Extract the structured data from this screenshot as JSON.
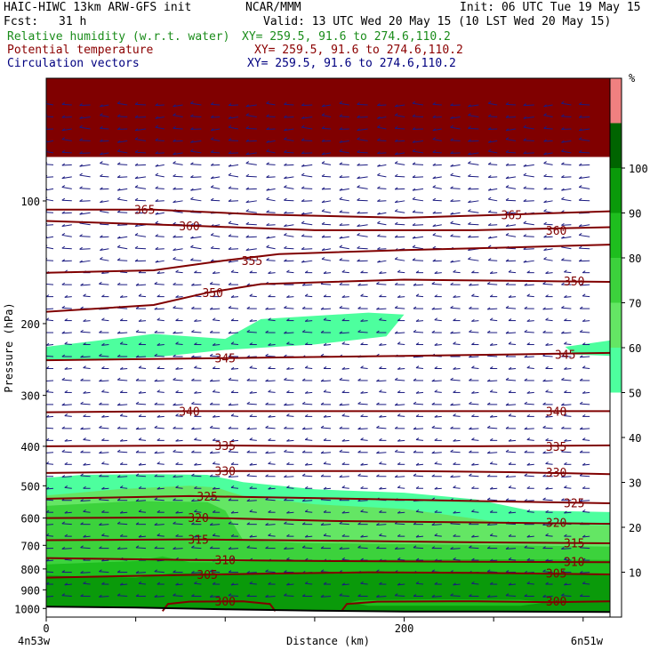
{
  "header": {
    "title_left": "HAIC-HIWC 13km ARW-GFS init",
    "title_center": "NCAR/MMM",
    "init": "Init: 06 UTC Tue 19 May 15",
    "fcst_label": "Fcst:",
    "fcst_value": "31 h",
    "valid": "Valid: 13 UTC Wed 20 May 15 (10 LST Wed 20 May 15)"
  },
  "fields": [
    {
      "name": "Relative humidity (w.r.t. water)",
      "xy": "XY= 259.5, 91.6 to 274.6,110.2",
      "color": "#1a8c1a"
    },
    {
      "name": "Potential temperature",
      "xy": "XY= 259.5, 91.6 to 274.6,110.2",
      "color": "#8b0000"
    },
    {
      "name": "Circulation vectors",
      "xy": "XY= 259.5, 91.6 to 274.6,110.2",
      "color": "#000080"
    }
  ],
  "chart_data": {
    "type": "cross-section",
    "ylabel": "Pressure (hPa)",
    "xlabel": "Distance (km)",
    "y_scale": "log",
    "ylim": [
      1050,
      50
    ],
    "xlim": [
      0,
      315
    ],
    "y_ticks": [
      100,
      200,
      300,
      400,
      500,
      600,
      700,
      800,
      900,
      1000
    ],
    "x_ticks": [
      0,
      200
    ],
    "x_endpoints": [
      "4n53w",
      "6n51w"
    ],
    "colorbar": {
      "unit": "%",
      "levels": [
        10,
        20,
        30,
        40,
        50,
        60,
        70,
        80,
        90,
        100
      ],
      "colors": [
        "#ffffff",
        "#ffffff",
        "#ffffff",
        "#ffffff",
        "#ffffff",
        "#4dff9e",
        "#64e664",
        "#3cd23c",
        "#1ebe1e",
        "#0a9a0a",
        "#006400",
        "#f08080"
      ]
    },
    "rh_regions": [
      {
        "level": 50,
        "color": "#4dff9e",
        "boundary": [
          [
            0,
            590
          ],
          [
            0,
            478
          ],
          [
            20,
            470
          ],
          [
            60,
            468
          ],
          [
            90,
            470
          ],
          [
            110,
            490
          ],
          [
            150,
            510
          ],
          [
            200,
            520
          ],
          [
            240,
            540
          ],
          [
            270,
            575
          ],
          [
            315,
            580
          ],
          [
            315,
            1050
          ],
          [
            0,
            1050
          ]
        ]
      },
      {
        "level": 60,
        "color": "#64e664",
        "boundary": [
          [
            0,
            600
          ],
          [
            0,
            528
          ],
          [
            40,
            510
          ],
          [
            80,
            500
          ],
          [
            95,
            505
          ],
          [
            110,
            530
          ],
          [
            150,
            555
          ],
          [
            200,
            570
          ],
          [
            260,
            620
          ],
          [
            315,
            625
          ],
          [
            315,
            1050
          ],
          [
            0,
            1050
          ]
        ]
      },
      {
        "level": 70,
        "color": "#3cd23c",
        "boundary": [
          [
            0,
            610
          ],
          [
            0,
            560
          ],
          [
            50,
            545
          ],
          [
            90,
            548
          ],
          [
            100,
            575
          ],
          [
            110,
            680
          ],
          [
            140,
            690
          ],
          [
            200,
            695
          ],
          [
            260,
            700
          ],
          [
            315,
            705
          ],
          [
            315,
            1050
          ],
          [
            0,
            1050
          ]
        ]
      },
      {
        "level": 80,
        "color": "#1ebe1e",
        "boundary": [
          [
            0,
            780
          ],
          [
            0,
            780
          ],
          [
            50,
            765
          ],
          [
            65,
            745
          ],
          [
            80,
            770
          ],
          [
            100,
            770
          ],
          [
            140,
            760
          ],
          [
            200,
            758
          ],
          [
            260,
            758
          ],
          [
            315,
            760
          ],
          [
            315,
            1050
          ],
          [
            0,
            1050
          ]
        ]
      },
      {
        "level": 90,
        "color": "#0a9a0a",
        "boundary": [
          [
            0,
            870
          ],
          [
            0,
            830
          ],
          [
            50,
            840
          ],
          [
            70,
            820
          ],
          [
            100,
            820
          ],
          [
            140,
            815
          ],
          [
            200,
            815
          ],
          [
            260,
            820
          ],
          [
            315,
            825
          ],
          [
            315,
            1050
          ],
          [
            0,
            1050
          ]
        ]
      }
    ],
    "rh_upper_band": {
      "level": 50,
      "color": "#4dff9e",
      "boundary": [
        [
          0,
          228
        ],
        [
          60,
          212
        ],
        [
          100,
          218
        ],
        [
          120,
          195
        ],
        [
          180,
          188
        ],
        [
          200,
          190
        ],
        [
          190,
          215
        ],
        [
          150,
          225
        ],
        [
          100,
          232
        ],
        [
          60,
          242
        ],
        [
          0,
          247
        ]
      ]
    },
    "rh_upper_band_right": {
      "level": 50,
      "color": "#4dff9e",
      "boundary": [
        [
          290,
          228
        ],
        [
          315,
          220
        ],
        [
          315,
          240
        ],
        [
          295,
          238
        ]
      ]
    },
    "rh_pockets": [
      {
        "level": 90,
        "color": "#0a9a0a",
        "boundary": [
          [
            0,
            950
          ],
          [
            30,
            900
          ],
          [
            100,
            900
          ],
          [
            150,
            910
          ],
          [
            200,
            925
          ],
          [
            230,
            935
          ],
          [
            260,
            940
          ],
          [
            315,
            935
          ],
          [
            315,
            1050
          ],
          [
            0,
            1050
          ]
        ]
      },
      {
        "level": 80,
        "color": "#1ebe1e",
        "boundary": [
          [
            170,
            965
          ],
          [
            175,
            955
          ],
          [
            210,
            950
          ],
          [
            265,
            952
          ],
          [
            280,
            965
          ],
          [
            265,
            985
          ],
          [
            180,
            985
          ]
        ]
      }
    ],
    "top_band": {
      "color": "#800000",
      "p_top": 50,
      "p_bottom": 78
    },
    "theta_contours": [
      {
        "level": 365,
        "points": [
          [
            0,
            105
          ],
          [
            60,
            105
          ],
          [
            120,
            108
          ],
          [
            200,
            110
          ],
          [
            260,
            108
          ],
          [
            315,
            106
          ]
        ],
        "labels": [
          [
            55,
            105
          ],
          [
            260,
            108
          ]
        ]
      },
      {
        "level": 360,
        "points": [
          [
            0,
            112
          ],
          [
            80,
            115
          ],
          [
            150,
            118
          ],
          [
            240,
            118
          ],
          [
            315,
            116
          ]
        ],
        "labels": [
          [
            80,
            115
          ],
          [
            285,
            118
          ]
        ]
      },
      {
        "level": 355,
        "points": [
          [
            0,
            150
          ],
          [
            60,
            148
          ],
          [
            100,
            140
          ],
          [
            130,
            135
          ],
          [
            200,
            132
          ],
          [
            260,
            130
          ],
          [
            315,
            128
          ]
        ],
        "labels": [
          [
            115,
            140
          ]
        ]
      },
      {
        "level": 350,
        "points": [
          [
            0,
            187
          ],
          [
            60,
            180
          ],
          [
            90,
            168
          ],
          [
            120,
            160
          ],
          [
            200,
            156
          ],
          [
            260,
            157
          ],
          [
            315,
            158
          ]
        ],
        "labels": [
          [
            93,
            168
          ],
          [
            295,
            157
          ]
        ]
      },
      {
        "level": 345,
        "points": [
          [
            0,
            246
          ],
          [
            100,
            243
          ],
          [
            200,
            240
          ],
          [
            260,
            238
          ],
          [
            315,
            236
          ]
        ],
        "labels": [
          [
            100,
            243
          ],
          [
            290,
            238
          ]
        ]
      },
      {
        "level": 340,
        "points": [
          [
            0,
            330
          ],
          [
            80,
            328
          ],
          [
            160,
            328
          ],
          [
            240,
            328
          ],
          [
            315,
            328
          ]
        ],
        "labels": [
          [
            80,
            328
          ],
          [
            285,
            328
          ]
        ]
      },
      {
        "level": 335,
        "points": [
          [
            0,
            400
          ],
          [
            90,
            398
          ],
          [
            160,
            400
          ],
          [
            240,
            400
          ],
          [
            315,
            398
          ]
        ],
        "labels": [
          [
            100,
            398
          ],
          [
            285,
            400
          ]
        ]
      },
      {
        "level": 330,
        "points": [
          [
            0,
            465
          ],
          [
            90,
            460
          ],
          [
            200,
            460
          ],
          [
            260,
            463
          ],
          [
            315,
            468
          ]
        ],
        "labels": [
          [
            100,
            460
          ],
          [
            285,
            463
          ]
        ]
      },
      {
        "level": 325,
        "points": [
          [
            0,
            538
          ],
          [
            80,
            530
          ],
          [
            160,
            537
          ],
          [
            240,
            545
          ],
          [
            315,
            552
          ]
        ],
        "labels": [
          [
            90,
            530
          ],
          [
            295,
            550
          ]
        ]
      },
      {
        "level": 320,
        "points": [
          [
            0,
            600
          ],
          [
            80,
            598
          ],
          [
            160,
            610
          ],
          [
            240,
            615
          ],
          [
            315,
            620
          ]
        ],
        "labels": [
          [
            85,
            598
          ],
          [
            285,
            615
          ]
        ]
      },
      {
        "level": 315,
        "points": [
          [
            0,
            680
          ],
          [
            80,
            677
          ],
          [
            160,
            682
          ],
          [
            240,
            688
          ],
          [
            315,
            692
          ]
        ],
        "labels": [
          [
            85,
            677
          ],
          [
            295,
            690
          ]
        ]
      },
      {
        "level": 310,
        "points": [
          [
            0,
            752
          ],
          [
            80,
            760
          ],
          [
            160,
            765
          ],
          [
            240,
            768
          ],
          [
            315,
            770
          ]
        ],
        "labels": [
          [
            100,
            760
          ],
          [
            295,
            768
          ]
        ]
      },
      {
        "level": 305,
        "points": [
          [
            0,
            840
          ],
          [
            60,
            830
          ],
          [
            120,
            822
          ],
          [
            180,
            815
          ],
          [
            240,
            818
          ],
          [
            315,
            825
          ]
        ],
        "labels": [
          [
            90,
            826
          ],
          [
            285,
            818
          ]
        ]
      },
      {
        "level": 300,
        "points": [
          [
            65,
            1015
          ],
          [
            68,
            975
          ],
          [
            80,
            962
          ],
          [
            110,
            960
          ],
          [
            125,
            975
          ],
          [
            128,
            1015
          ]
        ],
        "labels": [
          [
            100,
            960
          ],
          [
            285,
            960
          ]
        ]
      },
      {
        "level": 300,
        "points": [
          [
            165,
            1015
          ],
          [
            168,
            975
          ],
          [
            185,
            962
          ],
          [
            240,
            960
          ],
          [
            285,
            965
          ],
          [
            315,
            960
          ]
        ],
        "labels": []
      }
    ],
    "terrain": [
      [
        0,
        990
      ],
      [
        50,
        995
      ],
      [
        100,
        1005
      ],
      [
        150,
        1012
      ],
      [
        200,
        1018
      ],
      [
        250,
        1018
      ],
      [
        315,
        1020
      ]
    ],
    "vector_cols": 30,
    "vector_rows": 42
  }
}
